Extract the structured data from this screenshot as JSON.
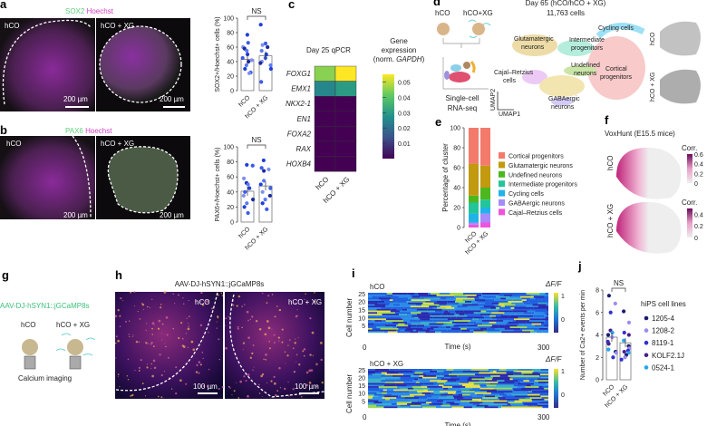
{
  "panels": {
    "a": {
      "label": "a",
      "title_green": "SOX2",
      "title_magenta": "Hoechst",
      "img_left": "hCO",
      "img_right": "hCO + XG",
      "scale": "200 µm"
    },
    "b": {
      "label": "b",
      "title_green": "PAX6",
      "title_magenta": "Hoechst",
      "img_left": "hCO",
      "img_right": "hCO + XG",
      "scale": "200 µm"
    },
    "c": {
      "label": "c",
      "title": "Day 25 qPCR",
      "cbar_title1": "Gene",
      "cbar_title2": "expression",
      "cbar_title3": "(norm. ",
      "cbar_title3_it": "GAPDH",
      "cbar_title3_end": ")"
    },
    "d": {
      "label": "d",
      "hco": "hCO",
      "hcoxg": "hCO+XG",
      "scrna1": "Single-cell",
      "scrna2": "RNA-seq",
      "title1": "Day 65 (hCO/hCO + XG)",
      "title2": "11,763 cells",
      "umap1": "UMAP1",
      "umap2": "UMAP2",
      "side_hco": "hCO",
      "side_xg": "hCO + XG",
      "clusters": {
        "glut1": "Glutamatergic",
        "glut2": "neurons",
        "int1": "Intermediate",
        "int2": "progenitors",
        "cyc": "Cycling cells",
        "und1": "Undefined",
        "und2": "neurons",
        "cort1": "Cortical",
        "cort2": "progenitors",
        "cr1": "Cajal–Retzius",
        "cr2": "cells",
        "gaba1": "GABAergic",
        "gaba2": "neurons"
      }
    },
    "e": {
      "label": "e"
    },
    "f": {
      "label": "f",
      "title": "VoxHunt (E15.5 mice)",
      "row1": "hCO",
      "row2": "hCO + XG",
      "corr": "Corr.",
      "ticks1": [
        "0.6",
        "0.4",
        "0.2",
        "0"
      ],
      "ticks2": [
        "0.4",
        "0.2",
        "0"
      ]
    },
    "g": {
      "label": "g",
      "construct": "AAV-DJ-hSYN1::jGCaMP8s",
      "hco": "hCO",
      "hcoxg": "hCO + XG",
      "caption": "Calcium imaging"
    },
    "h": {
      "label": "h",
      "title": "AAV-DJ-hSYN1::jGCaMP8s",
      "img_left": "hCO",
      "img_right": "hCO + XG",
      "scale": "100 µm"
    },
    "i": {
      "label": "i",
      "top": "hCO",
      "bottom": "hCO + XG",
      "cbar": "ΔF/F",
      "cbar_ticks": [
        "1",
        "0"
      ],
      "ylabel": "Cell number",
      "yticks": [
        "25",
        "20",
        "15",
        "10",
        "5"
      ],
      "xticks": [
        "0",
        "300"
      ],
      "xlabel": "Time (s)"
    },
    "j": {
      "label": "j",
      "legend_title": "hiPS cell lines"
    }
  },
  "chart_data": [
    {
      "id": "a-bar",
      "type": "bar",
      "ylabel": "SOX2+/Hoechst+ cells (%)",
      "categories": [
        "hCO",
        "hCO + XG"
      ],
      "values": [
        43,
        48
      ],
      "ylim": [
        0,
        100
      ],
      "yticks": [
        "0",
        "20",
        "40",
        "60",
        "80",
        "100"
      ],
      "annotation": "NS",
      "points": [
        [
          77,
          66,
          60,
          58,
          55,
          50,
          45,
          42,
          40,
          35,
          30,
          25,
          24
        ],
        [
          91,
          65,
          63,
          60,
          55,
          50,
          45,
          40,
          38,
          35,
          30,
          12
        ]
      ]
    },
    {
      "id": "b-bar",
      "type": "bar",
      "ylabel": "PAX6+/Hoechst+ cells (%)",
      "categories": [
        "hCO",
        "hCO + XG"
      ],
      "values": [
        41,
        48
      ],
      "ylim": [
        0,
        100
      ],
      "yticks": [
        "0",
        "20",
        "40",
        "60",
        "80",
        "100"
      ],
      "annotation": "NS",
      "points": [
        [
          76,
          75,
          58,
          52,
          50,
          45,
          40,
          35,
          30,
          25,
          20,
          12
        ],
        [
          82,
          72,
          70,
          68,
          55,
          50,
          45,
          40,
          35,
          30,
          25,
          17
        ]
      ]
    },
    {
      "id": "c-heatmap",
      "type": "heatmap",
      "title": "Day 25 qPCR",
      "rows": [
        "FOXG1",
        "EMX1",
        "NKX2-1",
        "EN1",
        "FOXA2",
        "RAX",
        "HOXB4"
      ],
      "columns": [
        "hCO",
        "hCO + XG"
      ],
      "values": [
        [
          0.045,
          0.055
        ],
        [
          0.025,
          0.03
        ],
        [
          0,
          0
        ],
        [
          0,
          0
        ],
        [
          0,
          0
        ],
        [
          0,
          0
        ],
        [
          0,
          0
        ]
      ],
      "colorbar_ticks": [
        "0.05",
        "0.04",
        "0.03",
        "0.02",
        "0.01"
      ],
      "crange": [
        0,
        0.055
      ]
    },
    {
      "id": "e-stacked",
      "type": "bar",
      "stacked": true,
      "ylabel": "Percentage of cluster",
      "categories": [
        "hCO",
        "hCO + XG"
      ],
      "ylim": [
        0,
        100
      ],
      "yticks": [
        "0",
        "20",
        "40",
        "60",
        "80",
        "100"
      ],
      "series": [
        {
          "name": "Cajal–Retzius cells",
          "color": "#ee55dd",
          "values": [
            3,
            5
          ]
        },
        {
          "name": "GABAergic neurons",
          "color": "#a78bfa",
          "values": [
            2,
            9
          ]
        },
        {
          "name": "Cycling cells",
          "color": "#1fb3ea",
          "values": [
            9,
            6
          ]
        },
        {
          "name": "Intermediate progenitors",
          "color": "#22c59a",
          "values": [
            11,
            8
          ]
        },
        {
          "name": "Undefined neurons",
          "color": "#4cb81e",
          "values": [
            7,
            12
          ]
        },
        {
          "name": "Glutamatergic neurons",
          "color": "#c19a0e",
          "values": [
            32,
            22
          ]
        },
        {
          "name": "Cortical progenitors",
          "color": "#f47a6c",
          "values": [
            36,
            38
          ]
        }
      ],
      "legend_order": [
        "Cortical progenitors",
        "Glutamatergic neurons",
        "Undefined neurons",
        "Intermediate progenitors",
        "Cycling cells",
        "GABAergic neurons",
        "Cajal–Retzius cells"
      ]
    },
    {
      "id": "j-bar",
      "type": "bar",
      "ylabel": "Number of Ca2+ events per min",
      "categories": [
        "hCO",
        "hCO + XG"
      ],
      "values": [
        3.8,
        3.3
      ],
      "ylim": [
        0,
        8
      ],
      "yticks": [
        "0",
        "2",
        "4",
        "6",
        "8"
      ],
      "annotation": "NS",
      "points": [
        [
          7.5,
          6.8,
          6.0,
          4.4,
          4.2,
          4.0,
          3.8,
          3.4,
          3.2,
          2.7,
          2.5,
          2.4,
          2.0
        ],
        [
          6.1,
          5.1,
          4.2,
          4.0,
          3.5,
          3.0,
          2.8,
          2.6,
          2.5,
          2.4,
          2.2,
          2.0,
          1.8
        ]
      ],
      "legend": [
        {
          "name": "1205-4",
          "color": "#1a1a6e"
        },
        {
          "name": "1208-2",
          "color": "#9b8cf0"
        },
        {
          "name": "8119-1",
          "color": "#3030d0"
        },
        {
          "name": "KOLF2.1J",
          "color": "#4b1f8a"
        },
        {
          "name": "0524-1",
          "color": "#22a8f0"
        }
      ]
    }
  ]
}
